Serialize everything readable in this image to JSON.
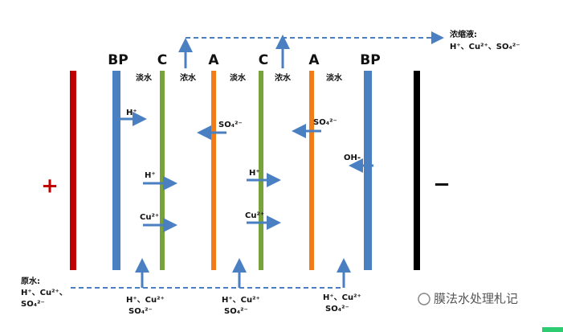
{
  "electrodes": {
    "anode": "+",
    "cathode": "−"
  },
  "membranes": [
    {
      "label": "BP"
    },
    {
      "label": "C"
    },
    {
      "label": "A"
    },
    {
      "label": "C"
    },
    {
      "label": "A"
    },
    {
      "label": "BP"
    }
  ],
  "compartments": [
    {
      "label": "淡水"
    },
    {
      "label": "浓水"
    },
    {
      "label": "淡水"
    },
    {
      "label": "浓水"
    },
    {
      "label": "淡水"
    }
  ],
  "ions": [
    {
      "label": "H⁺"
    },
    {
      "label": "SO₄²⁻"
    },
    {
      "label": "H⁺"
    },
    {
      "label": "Cu²⁺"
    },
    {
      "label": "H⁺"
    },
    {
      "label": "Cu²⁺"
    },
    {
      "label": "SO₄²⁻"
    },
    {
      "label": "OH-"
    }
  ],
  "feed": {
    "title": "原水:",
    "lines": [
      "H⁺、Cu²⁺、",
      "SO₄²⁻"
    ]
  },
  "concentrate": {
    "title": "浓缩液:",
    "lines": [
      "H⁺、Cu²⁺、SO₄²⁻"
    ]
  },
  "inlets": [
    {
      "lines": [
        "H⁺、Cu²⁺",
        "SO₄²⁻"
      ]
    },
    {
      "lines": [
        "H⁺、Cu²⁺",
        "SO₄²⁻"
      ]
    },
    {
      "lines": [
        "H⁺、Cu²⁺",
        "SO₄²⁻"
      ]
    }
  ],
  "watermark": "膜法水处理札记"
}
